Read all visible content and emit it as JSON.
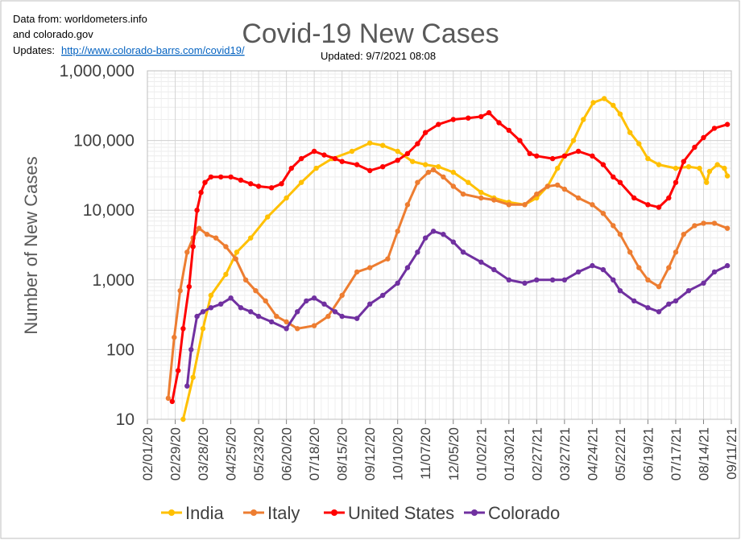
{
  "header": {
    "source_line1": "Data from: worldometers.info",
    "source_line2": "and colorado.gov",
    "updates_label": "Updates:",
    "updates_link": "http://www.colorado-barrs.com/covid19/",
    "updated_text": "Updated: 9/7/2021  08:08"
  },
  "chart_data": {
    "type": "line",
    "title": "Covid-19 New Cases",
    "ylabel": "Number of  New Cases",
    "xlabel": "",
    "yscale": "log",
    "ylim": [
      10,
      1000000
    ],
    "xlim": [
      "2020-02-01",
      "2021-09-11"
    ],
    "grid": true,
    "legend_position": "bottom",
    "y_tick_labels": [
      "10",
      "100",
      "1,000",
      "10,000",
      "100,000",
      "1,000,000"
    ],
    "x_tick_labels": [
      "02/01/20",
      "02/29/20",
      "03/28/20",
      "04/25/20",
      "05/23/20",
      "06/20/20",
      "07/18/20",
      "08/15/20",
      "09/12/20",
      "10/10/20",
      "11/07/20",
      "12/05/20",
      "01/02/21",
      "01/30/21",
      "02/27/21",
      "03/27/21",
      "04/24/21",
      "05/22/21",
      "06/19/21",
      "07/17/21",
      "08/14/21",
      "09/11/21"
    ],
    "series": [
      {
        "name": "India",
        "color": "#ffc000",
        "points": [
          [
            "2020-03-08",
            10
          ],
          [
            "2020-03-18",
            40
          ],
          [
            "2020-03-28",
            200
          ],
          [
            "2020-04-05",
            600
          ],
          [
            "2020-04-20",
            1200
          ],
          [
            "2020-05-01",
            2500
          ],
          [
            "2020-05-15",
            4000
          ],
          [
            "2020-06-01",
            8000
          ],
          [
            "2020-06-20",
            15000
          ],
          [
            "2020-07-05",
            25000
          ],
          [
            "2020-07-20",
            40000
          ],
          [
            "2020-08-05",
            55000
          ],
          [
            "2020-08-25",
            70000
          ],
          [
            "2020-09-12",
            92000
          ],
          [
            "2020-09-25",
            85000
          ],
          [
            "2020-10-10",
            70000
          ],
          [
            "2020-10-25",
            50000
          ],
          [
            "2020-11-07",
            45000
          ],
          [
            "2020-11-20",
            42000
          ],
          [
            "2020-12-05",
            35000
          ],
          [
            "2020-12-20",
            25000
          ],
          [
            "2021-01-02",
            18000
          ],
          [
            "2021-01-15",
            15000
          ],
          [
            "2021-01-30",
            13000
          ],
          [
            "2021-02-15",
            12000
          ],
          [
            "2021-02-27",
            15000
          ],
          [
            "2021-03-10",
            22000
          ],
          [
            "2021-03-20",
            40000
          ],
          [
            "2021-03-27",
            60000
          ],
          [
            "2021-04-05",
            100000
          ],
          [
            "2021-04-15",
            200000
          ],
          [
            "2021-04-25",
            350000
          ],
          [
            "2021-05-06",
            400000
          ],
          [
            "2021-05-15",
            320000
          ],
          [
            "2021-05-22",
            240000
          ],
          [
            "2021-06-01",
            130000
          ],
          [
            "2021-06-10",
            90000
          ],
          [
            "2021-06-19",
            55000
          ],
          [
            "2021-06-30",
            45000
          ],
          [
            "2021-07-17",
            40000
          ],
          [
            "2021-07-30",
            42000
          ],
          [
            "2021-08-10",
            40000
          ],
          [
            "2021-08-17",
            25000
          ],
          [
            "2021-08-20",
            36000
          ],
          [
            "2021-08-28",
            45000
          ],
          [
            "2021-09-04",
            40000
          ],
          [
            "2021-09-07",
            31000
          ]
        ]
      },
      {
        "name": "Italy",
        "color": "#ed7d31",
        "points": [
          [
            "2020-02-22",
            20
          ],
          [
            "2020-02-28",
            150
          ],
          [
            "2020-03-05",
            700
          ],
          [
            "2020-03-12",
            2500
          ],
          [
            "2020-03-18",
            4000
          ],
          [
            "2020-03-24",
            5500
          ],
          [
            "2020-04-01",
            4500
          ],
          [
            "2020-04-10",
            4000
          ],
          [
            "2020-04-20",
            3000
          ],
          [
            "2020-04-30",
            2000
          ],
          [
            "2020-05-10",
            1000
          ],
          [
            "2020-05-20",
            700
          ],
          [
            "2020-05-30",
            500
          ],
          [
            "2020-06-10",
            300
          ],
          [
            "2020-06-20",
            250
          ],
          [
            "2020-07-01",
            200
          ],
          [
            "2020-07-18",
            220
          ],
          [
            "2020-08-01",
            300
          ],
          [
            "2020-08-15",
            600
          ],
          [
            "2020-08-30",
            1300
          ],
          [
            "2020-09-12",
            1500
          ],
          [
            "2020-09-30",
            2000
          ],
          [
            "2020-10-10",
            5000
          ],
          [
            "2020-10-20",
            12000
          ],
          [
            "2020-10-30",
            25000
          ],
          [
            "2020-11-10",
            35000
          ],
          [
            "2020-11-15",
            38000
          ],
          [
            "2020-11-25",
            30000
          ],
          [
            "2020-12-05",
            22000
          ],
          [
            "2020-12-15",
            17000
          ],
          [
            "2021-01-02",
            15000
          ],
          [
            "2021-01-15",
            14000
          ],
          [
            "2021-01-30",
            12000
          ],
          [
            "2021-02-15",
            12000
          ],
          [
            "2021-02-27",
            17000
          ],
          [
            "2021-03-10",
            22000
          ],
          [
            "2021-03-20",
            23000
          ],
          [
            "2021-03-27",
            20000
          ],
          [
            "2021-04-10",
            15000
          ],
          [
            "2021-04-24",
            12000
          ],
          [
            "2021-05-05",
            9000
          ],
          [
            "2021-05-15",
            6000
          ],
          [
            "2021-05-22",
            4500
          ],
          [
            "2021-06-01",
            2500
          ],
          [
            "2021-06-10",
            1500
          ],
          [
            "2021-06-19",
            1000
          ],
          [
            "2021-06-30",
            800
          ],
          [
            "2021-07-10",
            1500
          ],
          [
            "2021-07-17",
            2500
          ],
          [
            "2021-07-25",
            4500
          ],
          [
            "2021-08-05",
            6000
          ],
          [
            "2021-08-14",
            6500
          ],
          [
            "2021-08-25",
            6500
          ],
          [
            "2021-09-07",
            5500
          ]
        ]
      },
      {
        "name": "United States",
        "color": "#ff0000",
        "points": [
          [
            "2020-02-26",
            18
          ],
          [
            "2020-03-03",
            50
          ],
          [
            "2020-03-08",
            200
          ],
          [
            "2020-03-14",
            800
          ],
          [
            "2020-03-18",
            3000
          ],
          [
            "2020-03-22",
            10000
          ],
          [
            "2020-03-26",
            18000
          ],
          [
            "2020-03-30",
            25000
          ],
          [
            "2020-04-05",
            30000
          ],
          [
            "2020-04-15",
            30000
          ],
          [
            "2020-04-25",
            30000
          ],
          [
            "2020-05-05",
            27000
          ],
          [
            "2020-05-15",
            24000
          ],
          [
            "2020-05-23",
            22000
          ],
          [
            "2020-06-05",
            21000
          ],
          [
            "2020-06-15",
            24000
          ],
          [
            "2020-06-25",
            40000
          ],
          [
            "2020-07-05",
            55000
          ],
          [
            "2020-07-18",
            70000
          ],
          [
            "2020-07-28",
            62000
          ],
          [
            "2020-08-08",
            55000
          ],
          [
            "2020-08-15",
            50000
          ],
          [
            "2020-08-30",
            45000
          ],
          [
            "2020-09-12",
            37000
          ],
          [
            "2020-09-25",
            42000
          ],
          [
            "2020-10-10",
            52000
          ],
          [
            "2020-10-20",
            65000
          ],
          [
            "2020-10-30",
            90000
          ],
          [
            "2020-11-07",
            130000
          ],
          [
            "2020-11-20",
            170000
          ],
          [
            "2020-12-05",
            200000
          ],
          [
            "2020-12-20",
            210000
          ],
          [
            "2021-01-02",
            220000
          ],
          [
            "2021-01-10",
            250000
          ],
          [
            "2021-01-20",
            180000
          ],
          [
            "2021-01-30",
            140000
          ],
          [
            "2021-02-10",
            100000
          ],
          [
            "2021-02-20",
            65000
          ],
          [
            "2021-02-27",
            60000
          ],
          [
            "2021-03-15",
            55000
          ],
          [
            "2021-03-27",
            60000
          ],
          [
            "2021-04-10",
            70000
          ],
          [
            "2021-04-24",
            60000
          ],
          [
            "2021-05-05",
            45000
          ],
          [
            "2021-05-15",
            30000
          ],
          [
            "2021-05-22",
            25000
          ],
          [
            "2021-06-05",
            15000
          ],
          [
            "2021-06-19",
            12000
          ],
          [
            "2021-06-30",
            11000
          ],
          [
            "2021-07-10",
            15000
          ],
          [
            "2021-07-17",
            25000
          ],
          [
            "2021-07-25",
            50000
          ],
          [
            "2021-08-05",
            80000
          ],
          [
            "2021-08-14",
            110000
          ],
          [
            "2021-08-25",
            150000
          ],
          [
            "2021-09-07",
            170000
          ]
        ]
      },
      {
        "name": "Colorado",
        "color": "#7030a0",
        "points": [
          [
            "2020-03-12",
            30
          ],
          [
            "2020-03-16",
            100
          ],
          [
            "2020-03-22",
            300
          ],
          [
            "2020-03-28",
            350
          ],
          [
            "2020-04-05",
            400
          ],
          [
            "2020-04-15",
            450
          ],
          [
            "2020-04-25",
            550
          ],
          [
            "2020-05-05",
            400
          ],
          [
            "2020-05-15",
            350
          ],
          [
            "2020-05-23",
            300
          ],
          [
            "2020-06-05",
            250
          ],
          [
            "2020-06-20",
            200
          ],
          [
            "2020-07-01",
            350
          ],
          [
            "2020-07-10",
            500
          ],
          [
            "2020-07-18",
            550
          ],
          [
            "2020-07-28",
            450
          ],
          [
            "2020-08-08",
            350
          ],
          [
            "2020-08-15",
            300
          ],
          [
            "2020-08-30",
            280
          ],
          [
            "2020-09-12",
            450
          ],
          [
            "2020-09-25",
            600
          ],
          [
            "2020-10-10",
            900
          ],
          [
            "2020-10-20",
            1500
          ],
          [
            "2020-10-30",
            2500
          ],
          [
            "2020-11-07",
            4000
          ],
          [
            "2020-11-15",
            5000
          ],
          [
            "2020-11-25",
            4500
          ],
          [
            "2020-12-05",
            3500
          ],
          [
            "2020-12-15",
            2500
          ],
          [
            "2021-01-02",
            1800
          ],
          [
            "2021-01-15",
            1400
          ],
          [
            "2021-01-30",
            1000
          ],
          [
            "2021-02-15",
            900
          ],
          [
            "2021-02-27",
            1000
          ],
          [
            "2021-03-15",
            1000
          ],
          [
            "2021-03-27",
            1000
          ],
          [
            "2021-04-10",
            1300
          ],
          [
            "2021-04-24",
            1600
          ],
          [
            "2021-05-05",
            1400
          ],
          [
            "2021-05-15",
            1000
          ],
          [
            "2021-05-22",
            700
          ],
          [
            "2021-06-05",
            500
          ],
          [
            "2021-06-19",
            400
          ],
          [
            "2021-06-30",
            350
          ],
          [
            "2021-07-10",
            450
          ],
          [
            "2021-07-17",
            500
          ],
          [
            "2021-07-30",
            700
          ],
          [
            "2021-08-14",
            900
          ],
          [
            "2021-08-25",
            1300
          ],
          [
            "2021-09-07",
            1600
          ]
        ]
      }
    ]
  }
}
